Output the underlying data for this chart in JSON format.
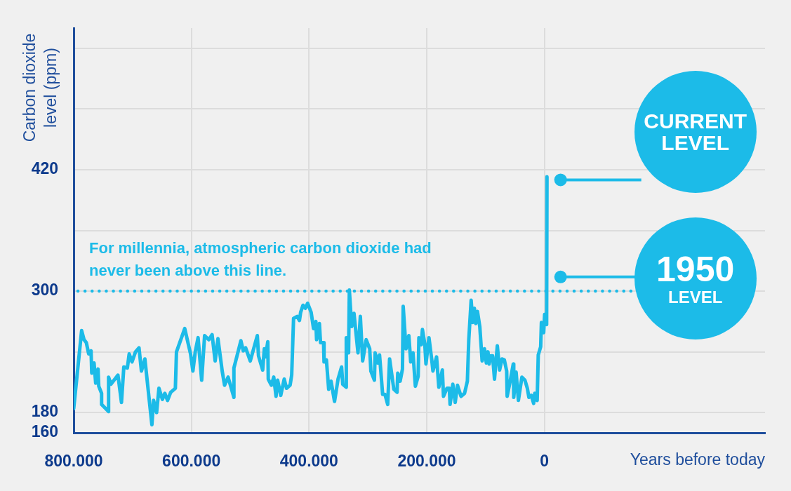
{
  "chart_data": {
    "type": "line",
    "ylabel": "Carbon dioxide level (ppm)",
    "xlabel": "Years before today",
    "xlim": [
      800000,
      -375000
    ],
    "xticks": [
      {
        "value": 800000,
        "label": "800.000"
      },
      {
        "value": 600000,
        "label": "600.000"
      },
      {
        "value": 400000,
        "label": "400.000"
      },
      {
        "value": 200000,
        "label": "200.000"
      },
      0
    ],
    "ylim": [
      160,
      560
    ],
    "yticks": [
      160,
      180,
      {
        "value": 240,
        "label": null
      },
      300,
      {
        "value": 360,
        "label": null
      },
      420,
      {
        "value": 480,
        "label": null
      },
      {
        "value": 540,
        "label": null
      }
    ],
    "grid": true,
    "legend": false,
    "marker": "none",
    "line_style": "solid",
    "ref_lines": [
      {
        "axis": "y",
        "value": 300,
        "label": "For millennia, atmospheric carbon dioxide had never been above this line.",
        "color": "#1cbbe8",
        "line_style": "dotted"
      }
    ],
    "annotations": [
      {
        "text": "CURRENT LEVEL",
        "x": -27500,
        "y": 410
      },
      {
        "text": "1950 LEVEL",
        "x": -27500,
        "y": 314
      }
    ],
    "series": [
      {
        "color": "#1cbbe8",
        "x": [
          800000,
          786500,
          782400,
          778500,
          774500,
          770500,
          769300,
          765400,
          762600,
          758600,
          757400,
          752600,
          752600,
          740700,
          740700,
          736700,
          724800,
          718800,
          714800,
          708800,
          705700,
          700900,
          695000,
          689000,
          684900,
          679000,
          667100,
          664200,
          659100,
          655100,
          649200,
          645100,
          640500,
          635200,
          627200,
          625300,
          611300,
          601400,
          597400,
          593400,
          588600,
          582500,
          577500,
          570400,
          564800,
          559600,
          554800,
          547600,
          543600,
          537600,
          527700,
          527700,
          515800,
          511800,
          507800,
          499900,
          487900,
          485900,
          478800,
          476000,
          474000,
          470100,
          469300,
          464100,
          460000,
          456100,
          453400,
          448100,
          442200,
          438200,
          432200,
          429500,
          426300,
          420300,
          416300,
          414300,
          410300,
          406300,
          402400,
          396400,
          392400,
          388400,
          387200,
          382400,
          380500,
          375300,
          374500,
          370500,
          366600,
          362600,
          356700,
          350700,
          344700,
          342700,
          336700,
          336700,
          332800,
          331500,
          327500,
          323600,
          316800,
          312800,
          308900,
          302900,
          296900,
          294900,
          288900,
          287700,
          283000,
          280200,
          274900,
          271000,
          266300,
          263100,
          255900,
          250400,
          249200,
          245200,
          241200,
          240000,
          235200,
          230400,
          227200,
          223300,
          219300,
          214500,
          213300,
          209300,
          207300,
          203300,
          201300,
          196200,
          191400,
          189400,
          183300,
          179400,
          173400,
          171500,
          165600,
          161600,
          160300,
          155600,
          151600,
          147700,
          141700,
          135700,
          130900,
          128500,
          124500,
          121800,
          119000,
          116600,
          113800,
          109800,
          105800,
          101800,
          98700,
          95900,
          93900,
          91100,
          88000,
          84800,
          80000,
          76100,
          72000,
          68100,
          64100,
          63300,
          58200,
          52900,
          52100,
          48100,
          44200,
          38200,
          33100,
          29000,
          26300,
          22300,
          18300,
          16400,
          12300,
          10400,
          6300,
          5100,
          1200,
          -400,
          -3800,
          -4400
        ],
        "values": [
          184,
          261,
          252,
          249,
          238,
          241,
          219,
          229,
          209,
          223,
          206,
          199,
          188,
          181,
          215,
          208,
          217,
          190,
          225,
          224,
          238,
          230,
          240,
          244,
          221,
          233,
          168,
          192,
          180,
          204,
          193,
          199,
          192,
          200,
          204,
          240,
          263,
          238,
          221,
          240,
          254,
          212,
          256,
          252,
          257,
          231,
          253,
          221,
          207,
          215,
          195,
          224,
          251,
          241,
          244,
          231,
          256,
          236,
          222,
          243,
          235,
          250,
          213,
          207,
          215,
          196,
          212,
          197,
          213,
          204,
          207,
          217,
          273,
          275,
          271,
          279,
          286,
          283,
          288,
          279,
          263,
          270,
          252,
          268,
          249,
          249,
          230,
          232,
          203,
          211,
          191,
          213,
          225,
          208,
          205,
          254,
          239,
          301,
          265,
          278,
          239,
          275,
          231,
          252,
          243,
          221,
          212,
          239,
          229,
          237,
          198,
          198,
          188,
          233,
          203,
          200,
          219,
          211,
          223,
          285,
          243,
          256,
          230,
          239,
          206,
          216,
          254,
          247,
          262,
          248,
          228,
          254,
          232,
          221,
          235,
          205,
          222,
          196,
          204,
          204,
          188,
          208,
          190,
          207,
          196,
          199,
          211,
          252,
          291,
          269,
          283,
          268,
          280,
          265,
          231,
          243,
          229,
          240,
          228,
          236,
          236,
          213,
          246,
          222,
          233,
          232,
          221,
          196,
          211,
          228,
          195,
          220,
          192,
          215,
          212,
          204,
          195,
          197,
          189,
          199,
          192,
          237,
          245,
          269,
          259,
          277,
          267,
          413
        ]
      }
    ]
  }
}
